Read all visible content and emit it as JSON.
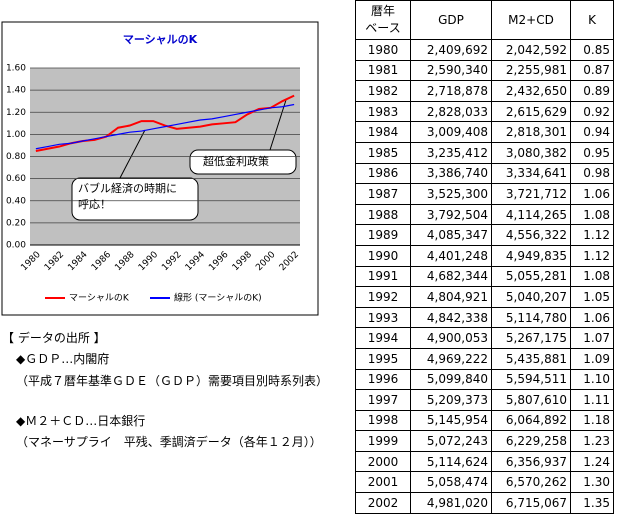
{
  "chart_data": {
    "type": "line",
    "title": "マーシャルのK",
    "categories": [
      "1980",
      null,
      "1982",
      null,
      "1984",
      null,
      "1986",
      null,
      "1988",
      null,
      "1990",
      null,
      "1992",
      null,
      "1994",
      null,
      "1996",
      null,
      "1998",
      null,
      "2000",
      null,
      "2002"
    ],
    "series": [
      {
        "name": "マーシャルのK",
        "color": "#ff0000",
        "values": [
          0.85,
          0.87,
          0.89,
          0.92,
          0.94,
          0.95,
          0.98,
          1.06,
          1.08,
          1.12,
          1.12,
          1.08,
          1.05,
          1.06,
          1.07,
          1.09,
          1.1,
          1.11,
          1.18,
          1.23,
          1.24,
          1.3,
          1.35
        ]
      },
      {
        "name": "線形 (マーシャルのK)",
        "color": "#0000ff",
        "values": [
          0.87,
          0.89,
          0.91,
          0.92,
          0.94,
          0.96,
          0.98,
          1.0,
          1.02,
          1.03,
          1.05,
          1.07,
          1.09,
          1.11,
          1.13,
          1.14,
          1.16,
          1.18,
          1.2,
          1.22,
          1.24,
          1.25,
          1.27
        ]
      }
    ],
    "ylim": [
      0,
      1.6
    ],
    "yticks": [
      {
        "value": 0,
        "label": "0.00"
      },
      {
        "value": 0.2,
        "label": "0.20"
      },
      {
        "value": 0.4,
        "label": "0.40"
      },
      {
        "value": 0.6,
        "label": "0.60"
      },
      {
        "value": 0.8,
        "label": "0.80"
      },
      {
        "value": 1.0,
        "label": "1.00"
      },
      {
        "value": 1.2,
        "label": "1.20"
      },
      {
        "value": 1.4,
        "label": "1.40"
      },
      {
        "value": 1.6,
        "label": "1.60"
      }
    ],
    "grid": true,
    "legend": "bottom",
    "annotations": [
      "バブル経済の時期に\n呼応！",
      "超低金利政策"
    ]
  },
  "table": {
    "header": [
      "暦年\nベース",
      "GDP",
      "M2+CD",
      "K"
    ],
    "rows": [
      [
        "1980",
        "2,409,692",
        "2,042,592",
        "0.85"
      ],
      [
        "1981",
        "2,590,340",
        "2,255,981",
        "0.87"
      ],
      [
        "1982",
        "2,718,878",
        "2,432,650",
        "0.89"
      ],
      [
        "1983",
        "2,828,033",
        "2,615,629",
        "0.92"
      ],
      [
        "1984",
        "3,009,408",
        "2,818,301",
        "0.94"
      ],
      [
        "1985",
        "3,235,412",
        "3,080,382",
        "0.95"
      ],
      [
        "1986",
        "3,386,740",
        "3,334,641",
        "0.98"
      ],
      [
        "1987",
        "3,525,300",
        "3,721,712",
        "1.06"
      ],
      [
        "1988",
        "3,792,504",
        "4,114,265",
        "1.08"
      ],
      [
        "1989",
        "4,085,347",
        "4,556,322",
        "1.12"
      ],
      [
        "1990",
        "4,401,248",
        "4,949,835",
        "1.12"
      ],
      [
        "1991",
        "4,682,344",
        "5,055,281",
        "1.08"
      ],
      [
        "1992",
        "4,804,921",
        "5,040,207",
        "1.05"
      ],
      [
        "1993",
        "4,842,338",
        "5,114,780",
        "1.06"
      ],
      [
        "1994",
        "4,900,053",
        "5,267,175",
        "1.07"
      ],
      [
        "1995",
        "4,969,222",
        "5,435,881",
        "1.09"
      ],
      [
        "1996",
        "5,099,840",
        "5,594,511",
        "1.10"
      ],
      [
        "1997",
        "5,209,373",
        "5,807,610",
        "1.11"
      ],
      [
        "1998",
        "5,145,954",
        "6,064,892",
        "1.18"
      ],
      [
        "1999",
        "5,072,243",
        "6,229,258",
        "1.23"
      ],
      [
        "2000",
        "5,114,624",
        "6,356,937",
        "1.24"
      ],
      [
        "2001",
        "5,058,474",
        "6,570,262",
        "1.30"
      ],
      [
        "2002",
        "4,981,020",
        "6,715,067",
        "1.35"
      ]
    ]
  },
  "notes": [
    "【 データの出所 】",
    "◆ＧＤＰ…内閣府",
    "（平成７暦年基準ＧＤＥ（ＧＤＰ）需要項目別時系列表）",
    "◆Ｍ２＋ＣＤ…日本銀行",
    "（マネーサプライ　平残、季調済データ（各年１２月））"
  ]
}
